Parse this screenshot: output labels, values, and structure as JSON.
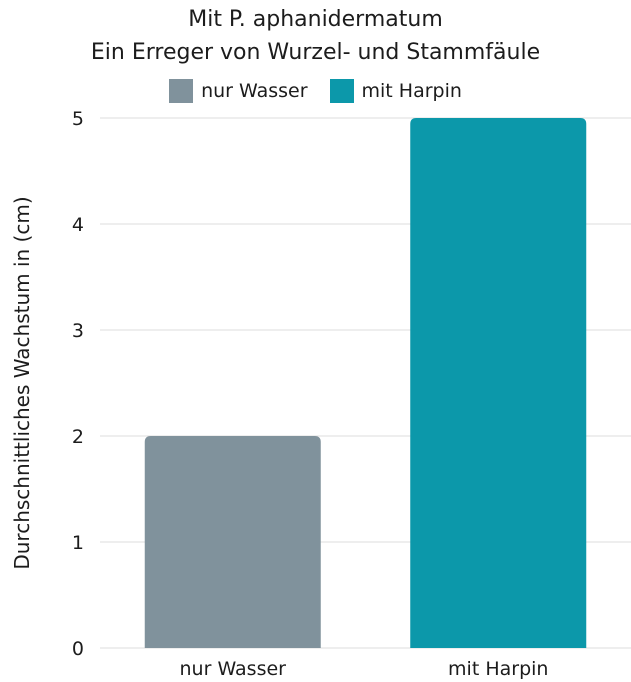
{
  "chart_data": {
    "type": "bar",
    "title": "Mit P. aphanidermatum",
    "subtitle": "Ein Erreger von Wurzel- und Stammfäule",
    "xlabel": "",
    "ylabel": "Durchschnittliches Wachstum in (cm)",
    "categories": [
      "nur Wasser",
      "mit Harpin"
    ],
    "values": [
      2,
      5
    ],
    "ylim": [
      0,
      5
    ],
    "yticks": [
      0,
      1,
      2,
      3,
      4,
      5
    ],
    "grid": true,
    "legend_position": "top",
    "legend": [
      {
        "label": "nur Wasser",
        "color": "#80929c"
      },
      {
        "label": "mit Harpin",
        "color": "#0c98aa"
      }
    ],
    "colors": [
      "#80929c",
      "#0c98aa"
    ]
  }
}
